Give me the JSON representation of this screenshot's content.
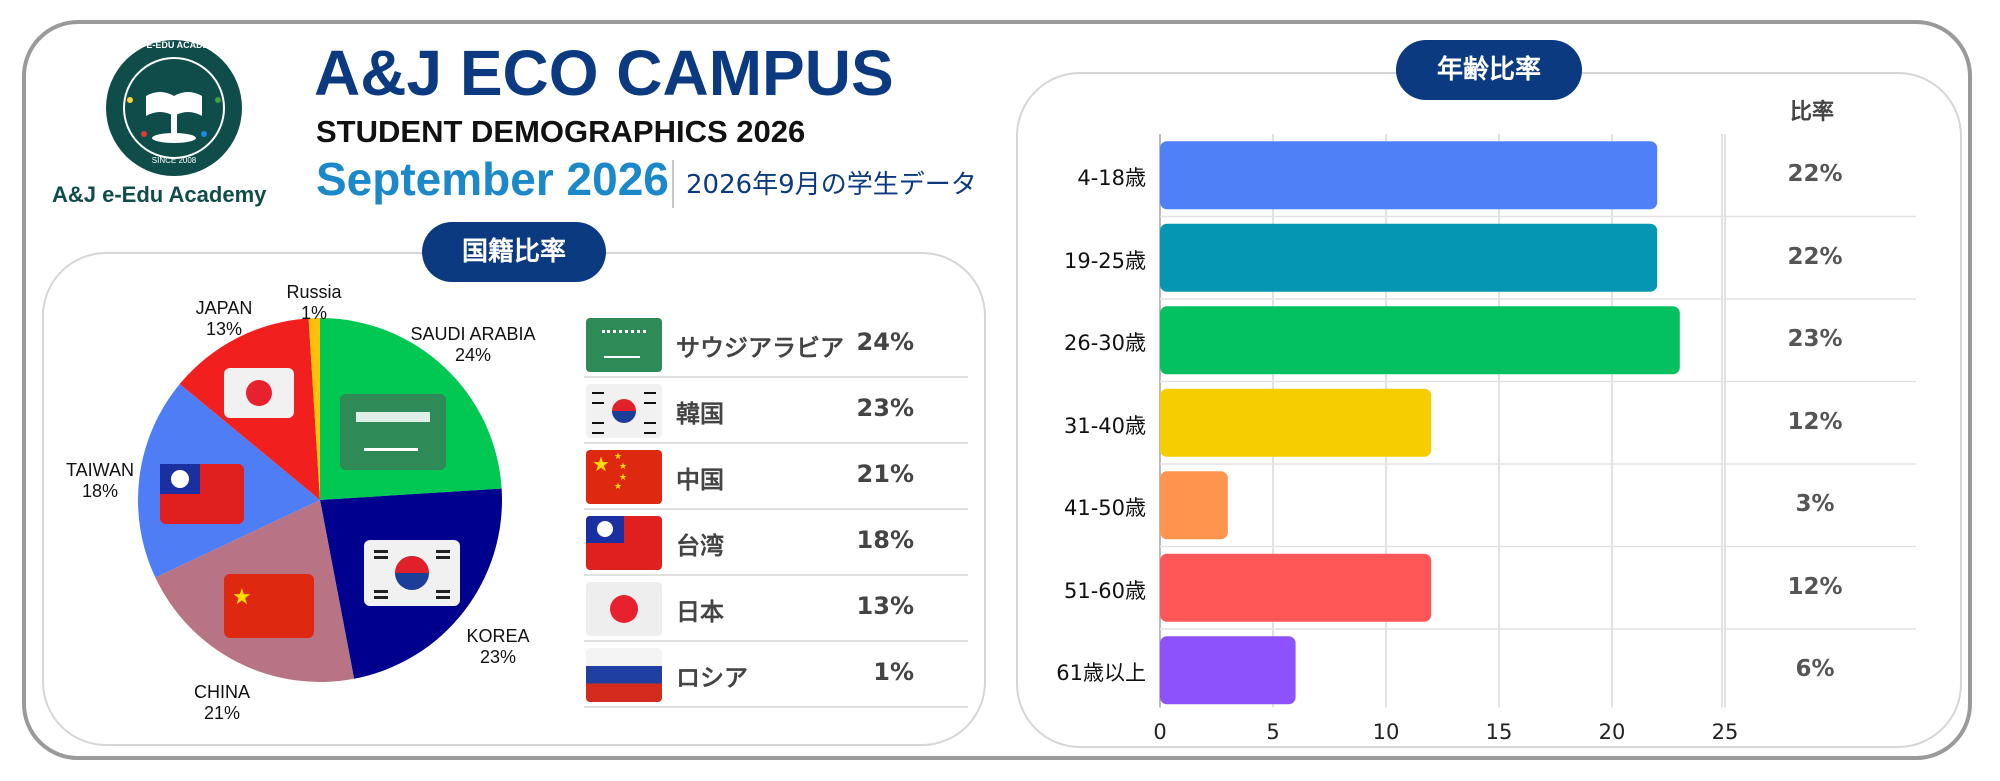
{
  "header": {
    "title": "A&J ECO CAMPUS",
    "subtitle": "STUDENT DEMOGRAPHICS 2026",
    "month": "September 2026",
    "month_jp": "2026年9月の学生データ",
    "logo_ring_text": "A&J E-EDU ACADEMY",
    "logo_since": "SINCE 2008",
    "logo_caption": "A&J e-Edu Academy"
  },
  "nationality": {
    "heading": "国籍比率",
    "rows": [
      {
        "name": "サウジアラビア",
        "pct": "24%",
        "flag": "saudi-flag"
      },
      {
        "name": "韓国",
        "pct": "23%",
        "flag": "korea-flag"
      },
      {
        "name": "中国",
        "pct": "21%",
        "flag": "china-flag"
      },
      {
        "name": "台湾",
        "pct": "18%",
        "flag": "taiwan-flag"
      },
      {
        "name": "日本",
        "pct": "13%",
        "flag": "japan-flag"
      },
      {
        "name": "ロシア",
        "pct": "1%",
        "flag": "russia-flag"
      }
    ]
  },
  "age": {
    "heading": "年齢比率",
    "pct_header": "比率"
  },
  "colors": {
    "navy": "#0c3a80",
    "saudi": "#00c853",
    "korea": "#00008f",
    "china": "#b87484",
    "taiwan": "#4f7df5",
    "japan": "#f21f1f",
    "russia": "#ffc107"
  },
  "chart_data": [
    {
      "type": "pie",
      "title": "国籍比率",
      "slices": [
        {
          "label": "SAUDI ARABIA",
          "pct_label": "24%",
          "value": 24,
          "color": "#00c853"
        },
        {
          "label": "KOREA",
          "pct_label": "23%",
          "value": 23,
          "color": "#00008f"
        },
        {
          "label": "CHINA",
          "pct_label": "21%",
          "value": 21,
          "color": "#b87484"
        },
        {
          "label": "TAIWAN",
          "pct_label": "18%",
          "value": 18,
          "color": "#4f7df5"
        },
        {
          "label": "JAPAN",
          "pct_label": "13%",
          "value": 13,
          "color": "#f21f1f"
        },
        {
          "label": "Russia",
          "pct_label": "1%",
          "value": 1,
          "color": "#ffc107"
        }
      ]
    },
    {
      "type": "bar",
      "orientation": "horizontal",
      "title": "年齢比率",
      "categories": [
        "4-18歳",
        "19-25歳",
        "26-30歳",
        "31-40歳",
        "41-50歳",
        "51-60歳",
        "61歳以上"
      ],
      "values": [
        22,
        22,
        23,
        12,
        3,
        12,
        6
      ],
      "value_labels": [
        "22%",
        "22%",
        "23%",
        "12%",
        "3%",
        "12%",
        "6%"
      ],
      "colors": [
        "#4f80f7",
        "#0596b4",
        "#03c161",
        "#f6cd00",
        "#ff944e",
        "#ff5757",
        "#8e52fc"
      ],
      "xlim": [
        0,
        25
      ],
      "xticks": [
        "0",
        "5",
        "10",
        "15",
        "20",
        "25"
      ],
      "grid": true
    }
  ]
}
